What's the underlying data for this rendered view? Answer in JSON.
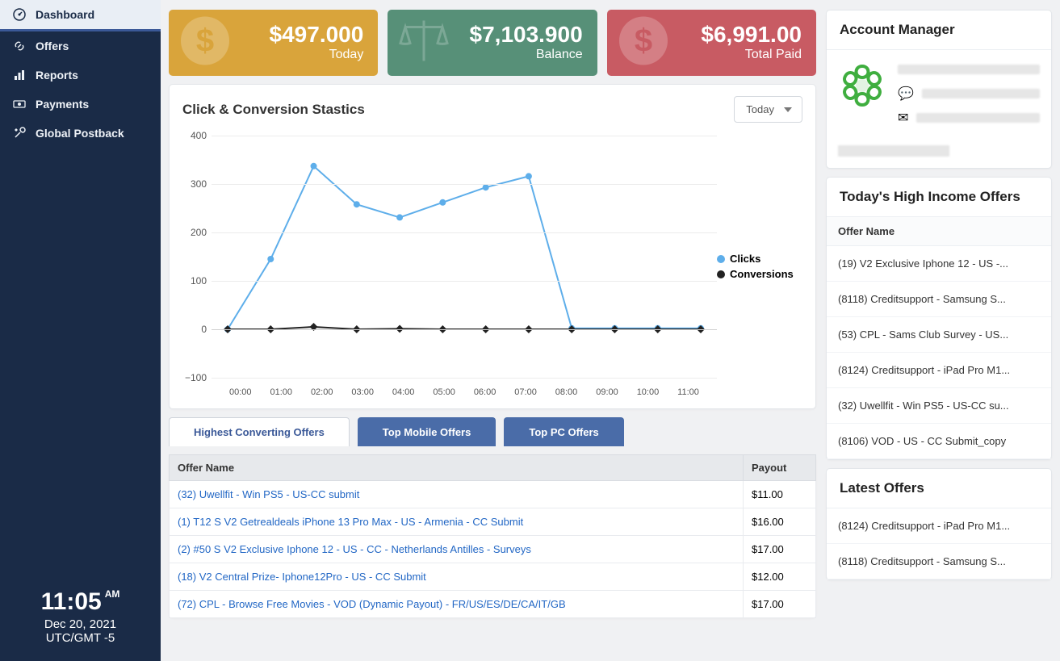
{
  "sidebar": {
    "items": [
      {
        "label": "Dashboard",
        "icon": "gauge",
        "active": true
      },
      {
        "label": "Offers",
        "icon": "link",
        "active": false
      },
      {
        "label": "Reports",
        "icon": "bars",
        "active": false
      },
      {
        "label": "Payments",
        "icon": "money",
        "active": false
      },
      {
        "label": "Global Postback",
        "icon": "wrench",
        "active": false
      }
    ],
    "clock": {
      "time": "11:05",
      "ampm": "AM",
      "date": "Dec 20, 2021",
      "tz": "UTC/GMT -5"
    }
  },
  "stat_cards": [
    {
      "value": "$497.000",
      "label": "Today",
      "bg": "#d9a43b",
      "icon": "dollar"
    },
    {
      "value": "$7,103.900",
      "label": "Balance",
      "bg": "#579078",
      "icon": "scale"
    },
    {
      "value": "$6,991.00",
      "label": "Total Paid",
      "bg": "#c85b63",
      "icon": "dollar"
    }
  ],
  "chart": {
    "title": "Click & Conversion Stastics",
    "range_selected": "Today",
    "ylim": [
      -100,
      400
    ],
    "ytick_step": 100,
    "x_labels": [
      "00:00",
      "01:00",
      "02:00",
      "03:00",
      "04:00",
      "05:00",
      "06:00",
      "07:00",
      "08:00",
      "09:00",
      "10:00",
      "11:00"
    ],
    "grid_color": "#ececec",
    "series": [
      {
        "name": "Clicks",
        "color": "#5eaeea",
        "marker": "circle",
        "marker_fill": "#5eaeea",
        "line_width": 2,
        "values": [
          0,
          145,
          337,
          258,
          231,
          262,
          293,
          316,
          2,
          2,
          2,
          2
        ]
      },
      {
        "name": "Conversions",
        "color": "#222222",
        "marker": "diamond",
        "marker_fill": "#222222",
        "line_width": 2,
        "values": [
          0,
          0,
          5,
          0,
          1,
          0,
          0,
          0,
          0,
          0,
          0,
          0
        ]
      }
    ]
  },
  "tabs": [
    {
      "label": "Highest Converting Offers",
      "active": true
    },
    {
      "label": "Top Mobile Offers",
      "active": false
    },
    {
      "label": "Top PC Offers",
      "active": false
    }
  ],
  "offers_table": {
    "columns": [
      "Offer Name",
      "Payout"
    ],
    "rows": [
      {
        "name": "(32) Uwellfit - Win PS5 - US-CC submit",
        "payout": "$11.00"
      },
      {
        "name": "(1) T12 S V2 Getrealdeals iPhone 13 Pro Max - US - Armenia - CC Submit",
        "payout": "$16.00"
      },
      {
        "name": "(2) #50 S V2 Exclusive Iphone 12 - US - CC - Netherlands Antilles - Surveys",
        "payout": "$17.00"
      },
      {
        "name": "(18) V2 Central Prize- Iphone12Pro - US - CC Submit",
        "payout": "$12.00"
      },
      {
        "name": "(72) CPL - Browse Free Movies - VOD (Dynamic Payout) - FR/US/ES/DE/CA/IT/GB",
        "payout": "$17.00"
      }
    ]
  },
  "account_manager": {
    "title": "Account Manager"
  },
  "high_income": {
    "title": "Today's High Income Offers",
    "header": "Offer Name",
    "items": [
      "(19) V2 Exclusive Iphone 12 - US -...",
      "(8118) Creditsupport - Samsung S...",
      "(53) CPL - Sams Club Survey - US...",
      "(8124) Creditsupport - iPad Pro M1...",
      "(32) Uwellfit - Win PS5 - US-CC su...",
      "(8106) VOD - US - CC Submit_copy"
    ]
  },
  "latest_offers": {
    "title": "Latest Offers",
    "items": [
      "(8124) Creditsupport - iPad Pro M1...",
      "(8118) Creditsupport - Samsung S..."
    ]
  }
}
